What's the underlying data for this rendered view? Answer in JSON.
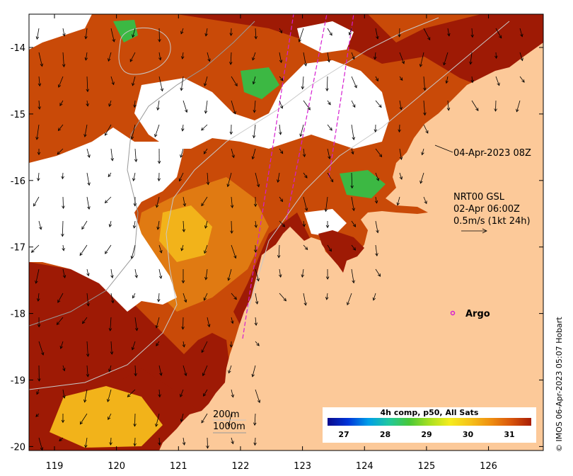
{
  "map": {
    "lon_ticks": [
      "119",
      "120",
      "121",
      "122",
      "123",
      "124",
      "125",
      "126"
    ],
    "lat_ticks": [
      "-14",
      "-15",
      "-16",
      "-17",
      "-18",
      "-19",
      "-20"
    ],
    "colors": {
      "land": "#fcc999",
      "cloud": "#ffffff",
      "sst_dark": "#9e1a05",
      "sst_mid": "#c94a08",
      "sst_orange": "#e07a12",
      "sst_yellow": "#f2b31a",
      "sst_green": "#3cb843",
      "contour": "#c8c8c8",
      "track": "#d51ed0",
      "frame": "#000000"
    }
  },
  "annotations": {
    "timestamp": "04-Apr-2023 08Z",
    "current_source": "NRT00 GSL",
    "current_time": "02-Apr 06:00Z",
    "current_scale": "0.5m/s (1kt 24h)",
    "argo_label": "Argo",
    "depth_200": "200m",
    "depth_1000": "1000m"
  },
  "colorbar": {
    "title": "4h comp, p50, All Sats",
    "ticks": [
      "27",
      "28",
      "29",
      "30",
      "31"
    ],
    "gradient": [
      "#0a0a8c",
      "#0035d9",
      "#009ee8",
      "#20c8a0",
      "#48c838",
      "#a8e020",
      "#f5ec1e",
      "#f5c21a",
      "#ef8f10",
      "#d9560c",
      "#a81d05"
    ]
  },
  "credit": "© IMOS 06-Apr-2023 05:07 Hobart"
}
